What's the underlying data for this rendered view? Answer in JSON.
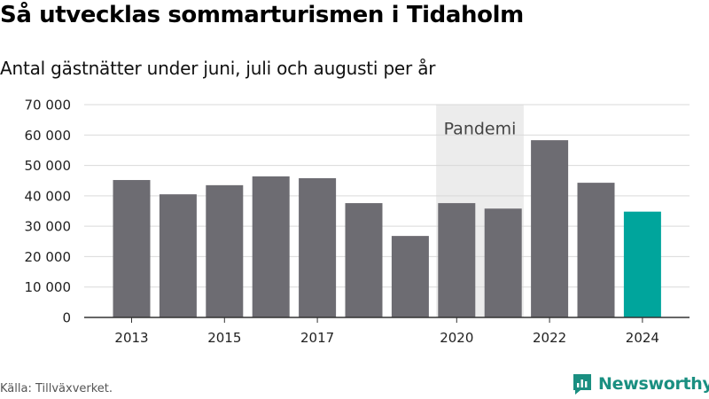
{
  "title": "Så utvecklas sommarturismen i Tidaholm",
  "subtitle": "Antal gästnätter under juni, juli och augusti per år",
  "source": "Källa: Tillväxverket.",
  "brand": "Newsworthy",
  "colors": {
    "bar": "#6d6c72",
    "highlight": "#00a59c",
    "shade": "#ececec",
    "grid": "#d9d9d9",
    "brand": "#1a8f81"
  },
  "chart_data": {
    "type": "bar",
    "categories": [
      "2013",
      "2014",
      "2015",
      "2016",
      "2017",
      "2018",
      "2019",
      "2020",
      "2021",
      "2022",
      "2023",
      "2024"
    ],
    "values": [
      45200,
      40500,
      43500,
      46400,
      45800,
      37600,
      26800,
      37600,
      35800,
      58300,
      44300,
      34800
    ],
    "highlight_category": "2024",
    "x_tick_labels": [
      "2013",
      "2015",
      "2017",
      "2020",
      "2022",
      "2024"
    ],
    "y_ticks": [
      0,
      10000,
      20000,
      30000,
      40000,
      50000,
      60000,
      70000
    ],
    "y_tick_labels": [
      "0",
      "10 000",
      "20 000",
      "30 000",
      "40 000",
      "50 000",
      "60 000",
      "70 000"
    ],
    "ylim": [
      0,
      70000
    ],
    "grid": true,
    "shaded_region": {
      "from": "2020",
      "to": "2021",
      "label": "Pandemi"
    }
  }
}
